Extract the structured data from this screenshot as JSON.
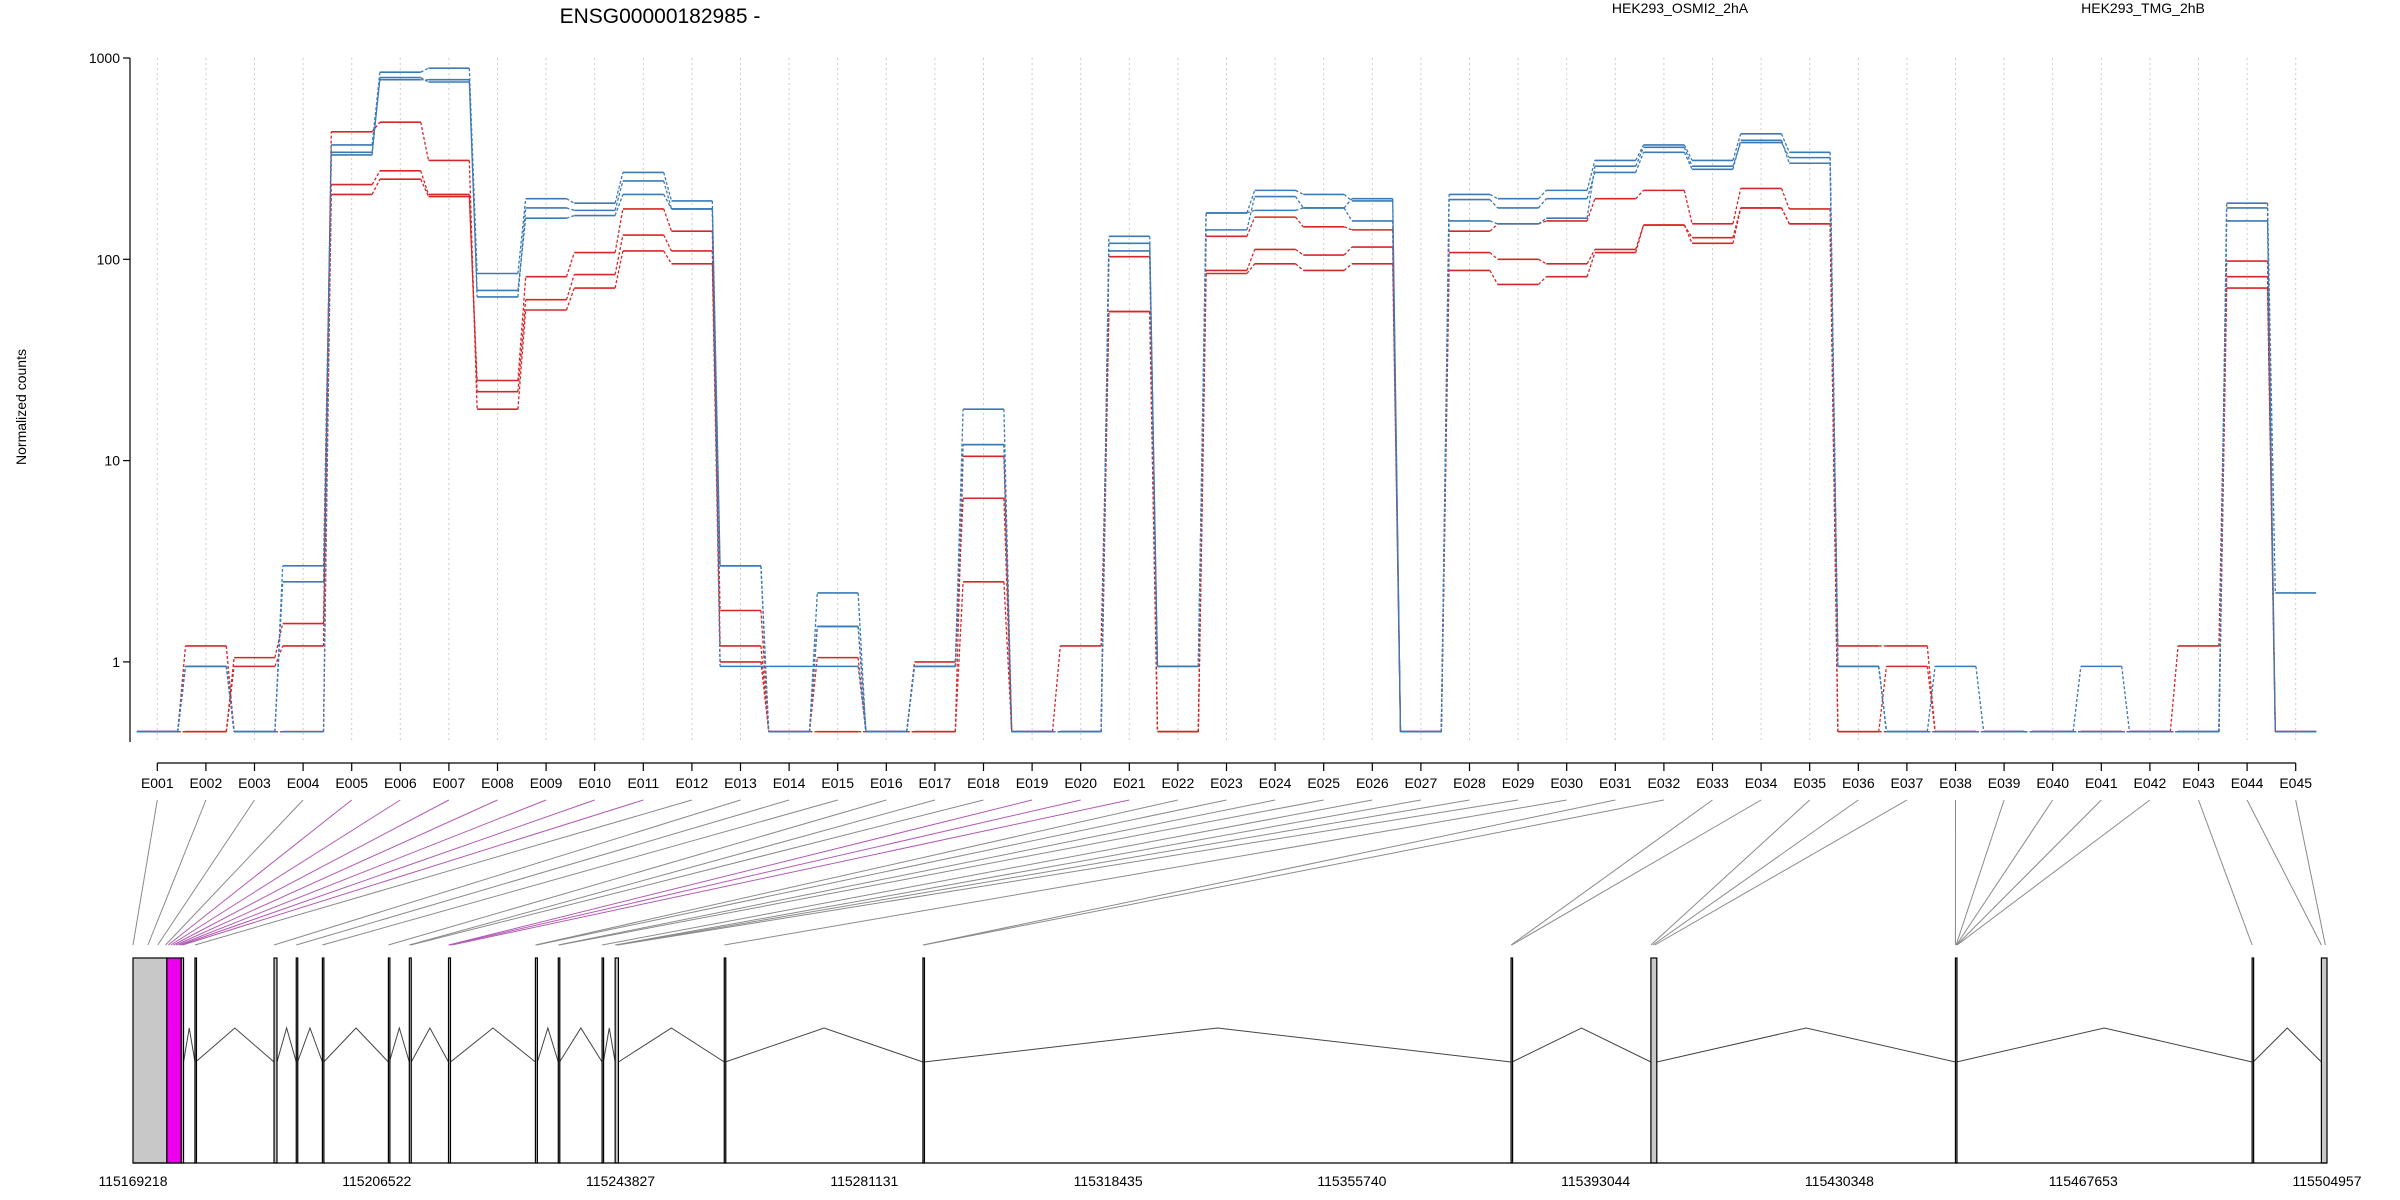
{
  "colors": {
    "group_a": "#d62728",
    "group_b": "#3a7ab7",
    "highlight": "#ee00ee",
    "exon_fill": "#c8c8c8"
  },
  "chart_data": {
    "type": "line",
    "title": "ENSG00000182985 -",
    "ylabel": "Normalized counts",
    "xlabel": "",
    "yscale": "log",
    "ylim": [
      0.4,
      1000
    ],
    "yticks": [
      1,
      10,
      100,
      1000
    ],
    "ytick_labels": [
      "1",
      "10",
      "100",
      "1000"
    ],
    "grid": "vertical dotted",
    "categories": [
      "E001",
      "E002",
      "E003",
      "E004",
      "E005",
      "E006",
      "E007",
      "E008",
      "E009",
      "E010",
      "E011",
      "E012",
      "E013",
      "E014",
      "E015",
      "E016",
      "E017",
      "E018",
      "E019",
      "E020",
      "E021",
      "E022",
      "E023",
      "E024",
      "E025",
      "E026",
      "E027",
      "E028",
      "E029",
      "E030",
      "E031",
      "E032",
      "E033",
      "E034",
      "E035",
      "E036",
      "E037",
      "E038",
      "E039",
      "E040",
      "E041",
      "E042",
      "E043",
      "E044",
      "E045"
    ],
    "legend": [
      {
        "label": "HEK293_OSMI2_2hA",
        "group": "a"
      },
      {
        "label": "HEK293_TMG_2hB",
        "group": "b"
      }
    ],
    "series": [
      {
        "group": "a",
        "values": [
          0.45,
          1.2,
          0.45,
          0.45,
          235,
          275,
          210,
          22,
          63,
          84,
          132,
          110,
          1.8,
          0.45,
          1.5,
          0.45,
          1.0,
          6.5,
          0.45,
          0.45,
          55,
          0.45,
          88,
          112,
          105,
          115,
          0.45,
          108,
          100,
          95,
          112,
          148,
          128,
          180,
          150,
          0.45,
          0.45,
          0.45,
          0.45,
          0.45,
          0.45,
          0.45,
          0.45,
          82,
          0.45
        ]
      },
      {
        "group": "a",
        "values": [
          0.45,
          0.45,
          0.95,
          1.2,
          210,
          250,
          205,
          25,
          82,
          108,
          178,
          138,
          1.2,
          0.45,
          1.05,
          0.45,
          0.45,
          10.5,
          0.45,
          1.2,
          55,
          0.45,
          130,
          162,
          145,
          140,
          0.45,
          138,
          150,
          155,
          200,
          220,
          150,
          225,
          178,
          1.2,
          1.2,
          0.45,
          0.45,
          0.45,
          0.45,
          0.45,
          1.2,
          98,
          0.45
        ]
      },
      {
        "group": "a",
        "values": [
          0.45,
          0.45,
          1.05,
          1.55,
          430,
          480,
          310,
          18,
          56,
          72,
          110,
          95,
          1.0,
          0.45,
          0.45,
          0.45,
          0.45,
          2.5,
          0.45,
          0.45,
          103,
          0.45,
          85,
          95,
          88,
          95,
          0.45,
          88,
          75,
          82,
          108,
          148,
          120,
          180,
          150,
          0.45,
          0.95,
          0.45,
          0.45,
          0.45,
          0.45,
          0.45,
          0.45,
          72,
          0.45
        ]
      },
      {
        "group": "b",
        "values": [
          0.45,
          0.95,
          0.45,
          2.5,
          330,
          800,
          760,
          70,
          160,
          165,
          210,
          178,
          0.95,
          0.95,
          0.95,
          0.45,
          0.95,
          12,
          0.45,
          0.45,
          110,
          0.95,
          170,
          175,
          180,
          155,
          0.45,
          198,
          180,
          200,
          270,
          340,
          280,
          390,
          300,
          0.95,
          0.45,
          0.45,
          0.45,
          0.45,
          0.45,
          0.45,
          0.45,
          180,
          0.45
        ]
      },
      {
        "group": "b",
        "values": [
          0.45,
          0.95,
          0.45,
          0.45,
          370,
          850,
          890,
          85,
          200,
          190,
          270,
          195,
          3.0,
          0.45,
          2.2,
          0.45,
          0.95,
          18,
          0.45,
          0.45,
          130,
          0.95,
          170,
          220,
          210,
          195,
          0.45,
          210,
          200,
          220,
          310,
          370,
          310,
          420,
          340,
          0.95,
          0.45,
          0.95,
          0.45,
          0.45,
          0.95,
          0.45,
          0.45,
          190,
          2.2
        ]
      },
      {
        "group": "b",
        "values": [
          0.45,
          0.95,
          0.45,
          3.0,
          340,
          780,
          780,
          65,
          180,
          175,
          245,
          178,
          3.0,
          0.45,
          1.5,
          0.45,
          0.95,
          12,
          0.45,
          0.45,
          120,
          0.95,
          140,
          205,
          180,
          200,
          0.45,
          155,
          150,
          160,
          290,
          360,
          290,
          380,
          320,
          0.95,
          0.45,
          0.45,
          0.45,
          0.45,
          0.45,
          0.45,
          0.45,
          155,
          0.45
        ]
      }
    ],
    "genomic_ticks": [
      "115169218",
      "115206522",
      "115243827",
      "115281131",
      "115318435",
      "115355740",
      "115393044",
      "115430348",
      "115467653",
      "115504957"
    ],
    "genomic_range": [
      115169218,
      115504957
    ],
    "exon_segments": [
      {
        "start": 115169218,
        "end": 115174400,
        "highlight": false
      },
      {
        "start": 115174400,
        "end": 115176600,
        "highlight": true
      },
      {
        "start": 115176600,
        "end": 115176950,
        "highlight": false
      },
      {
        "start": 115178700,
        "end": 115178800,
        "highlight": false
      },
      {
        "start": 115190800,
        "end": 115191250,
        "highlight": false
      },
      {
        "start": 115194200,
        "end": 115194400,
        "highlight": false
      },
      {
        "start": 115198200,
        "end": 115198400,
        "highlight": false
      },
      {
        "start": 115208300,
        "end": 115208450,
        "highlight": false
      },
      {
        "start": 115211500,
        "end": 115211800,
        "highlight": false
      },
      {
        "start": 115217500,
        "end": 115217800,
        "highlight": false
      },
      {
        "start": 115230800,
        "end": 115231100,
        "highlight": false
      },
      {
        "start": 115234300,
        "end": 115234500,
        "highlight": false
      },
      {
        "start": 115241000,
        "end": 115241200,
        "highlight": false
      },
      {
        "start": 115243000,
        "end": 115243500,
        "highlight": false
      },
      {
        "start": 115259700,
        "end": 115259850,
        "highlight": false
      },
      {
        "start": 115290100,
        "end": 115290250,
        "highlight": false
      },
      {
        "start": 115380100,
        "end": 115380250,
        "highlight": false
      },
      {
        "start": 115401500,
        "end": 115402400,
        "highlight": false
      },
      {
        "start": 115448100,
        "end": 115448250,
        "highlight": false
      },
      {
        "start": 115493500,
        "end": 115493650,
        "highlight": false
      },
      {
        "start": 115504100,
        "end": 115504957,
        "highlight": false
      }
    ],
    "intron_peaks": [
      {
        "from": 115176950,
        "to": 115178700,
        "up": true
      },
      {
        "from": 115178800,
        "to": 115190800,
        "up": true
      },
      {
        "from": 115191250,
        "to": 115194200,
        "up": true
      },
      {
        "from": 115194400,
        "to": 115198200,
        "up": true
      },
      {
        "from": 115198400,
        "to": 115208300,
        "up": true
      },
      {
        "from": 115208450,
        "to": 115211500,
        "up": true
      },
      {
        "from": 115211800,
        "to": 115217500,
        "up": true
      },
      {
        "from": 115217800,
        "to": 115230800,
        "up": true
      },
      {
        "from": 115231100,
        "to": 115234300,
        "up": true
      },
      {
        "from": 115234500,
        "to": 115241000,
        "up": true
      },
      {
        "from": 115241200,
        "to": 115243000,
        "up": true
      },
      {
        "from": 115243500,
        "to": 115259700,
        "up": true
      },
      {
        "from": 115259850,
        "to": 115290100,
        "up": true
      },
      {
        "from": 115290250,
        "to": 115380100,
        "up": true
      },
      {
        "from": 115380250,
        "to": 115401500,
        "up": true
      },
      {
        "from": 115402400,
        "to": 115448100,
        "up": true
      },
      {
        "from": 115448250,
        "to": 115493500,
        "up": true
      },
      {
        "from": 115493650,
        "to": 115504100,
        "up": true
      }
    ],
    "exon_map": [
      {
        "pos": 115169218,
        "highlight": false
      },
      {
        "pos": 115171500,
        "highlight": false
      },
      {
        "pos": 115173000,
        "highlight": false
      },
      {
        "pos": 115174200,
        "highlight": false
      },
      {
        "pos": 115174600,
        "highlight": true
      },
      {
        "pos": 115175000,
        "highlight": true
      },
      {
        "pos": 115175400,
        "highlight": true
      },
      {
        "pos": 115175800,
        "highlight": true
      },
      {
        "pos": 115176200,
        "highlight": true
      },
      {
        "pos": 115176500,
        "highlight": true
      },
      {
        "pos": 115176800,
        "highlight": true
      },
      {
        "pos": 115178700,
        "highlight": false
      },
      {
        "pos": 115190800,
        "highlight": false
      },
      {
        "pos": 115194200,
        "highlight": false
      },
      {
        "pos": 115198200,
        "highlight": false
      },
      {
        "pos": 115208300,
        "highlight": false
      },
      {
        "pos": 115211500,
        "highlight": false
      },
      {
        "pos": 115211700,
        "highlight": false
      },
      {
        "pos": 115217500,
        "highlight": true
      },
      {
        "pos": 115217700,
        "highlight": true
      },
      {
        "pos": 115218000,
        "highlight": true
      },
      {
        "pos": 115230800,
        "highlight": false
      },
      {
        "pos": 115231000,
        "highlight": false
      },
      {
        "pos": 115234300,
        "highlight": false
      },
      {
        "pos": 115234450,
        "highlight": false
      },
      {
        "pos": 115241000,
        "highlight": false
      },
      {
        "pos": 115243000,
        "highlight": false
      },
      {
        "pos": 115243200,
        "highlight": false
      },
      {
        "pos": 115243400,
        "highlight": false
      },
      {
        "pos": 115259700,
        "highlight": false
      },
      {
        "pos": 115290100,
        "highlight": false
      },
      {
        "pos": 115290200,
        "highlight": false
      },
      {
        "pos": 115380100,
        "highlight": false
      },
      {
        "pos": 115380200,
        "highlight": false
      },
      {
        "pos": 115401500,
        "highlight": false
      },
      {
        "pos": 115401800,
        "highlight": false
      },
      {
        "pos": 115402100,
        "highlight": false
      },
      {
        "pos": 115448100,
        "highlight": false
      },
      {
        "pos": 115448200,
        "highlight": false
      },
      {
        "pos": 115448250,
        "highlight": false
      },
      {
        "pos": 115448300,
        "highlight": false
      },
      {
        "pos": 115448350,
        "highlight": false
      },
      {
        "pos": 115493500,
        "highlight": false
      },
      {
        "pos": 115504100,
        "highlight": false
      },
      {
        "pos": 115504700,
        "highlight": false
      }
    ]
  }
}
